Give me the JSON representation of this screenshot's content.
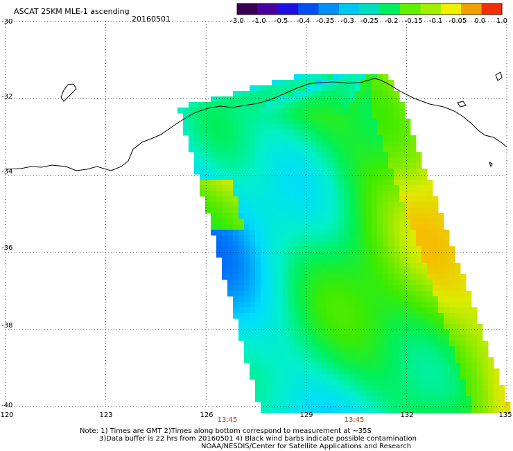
{
  "header": {
    "title": "ASCAT 25KM MLE-1 ascending",
    "date": "20160501"
  },
  "colorbar": {
    "labels": [
      "-3.0",
      "-1.0",
      "-0.5",
      "-0.4",
      "-0.35",
      "-0.3",
      "-0.25",
      "-0.2",
      "-0.15",
      "-0.1",
      "-0.05",
      "0.0",
      "1.0"
    ],
    "colors": [
      "#3a0050",
      "#4a00a0",
      "#1e10e0",
      "#0050f0",
      "#0090f8",
      "#00c8f0",
      "#00e0c0",
      "#00f060",
      "#60f000",
      "#a0f000",
      "#f0f000",
      "#f0a000",
      "#f03000"
    ]
  },
  "map": {
    "lat_labels": [
      "-30",
      "-32",
      "-34",
      "-36",
      "-38",
      "-40"
    ],
    "lon_labels": [
      "120",
      "123",
      "126",
      "129",
      "132",
      "135"
    ],
    "lat_values": [
      -30,
      -32,
      -34,
      -36,
      -38,
      -40
    ],
    "lon_values": [
      120,
      123,
      126,
      129,
      132,
      135
    ],
    "times": [
      "13:45",
      "13:45"
    ]
  },
  "notes": {
    "line1": "Note: 1) Times are GMT 2)Times along bottom correspond to measurement at ~35S",
    "line2": "3)Data buffer is 22 hrs from 20160501 4) Black wind barbs indicate possible contamination",
    "line3": "NOAA/NESDIS/Center for Satellite Applications and Research"
  }
}
